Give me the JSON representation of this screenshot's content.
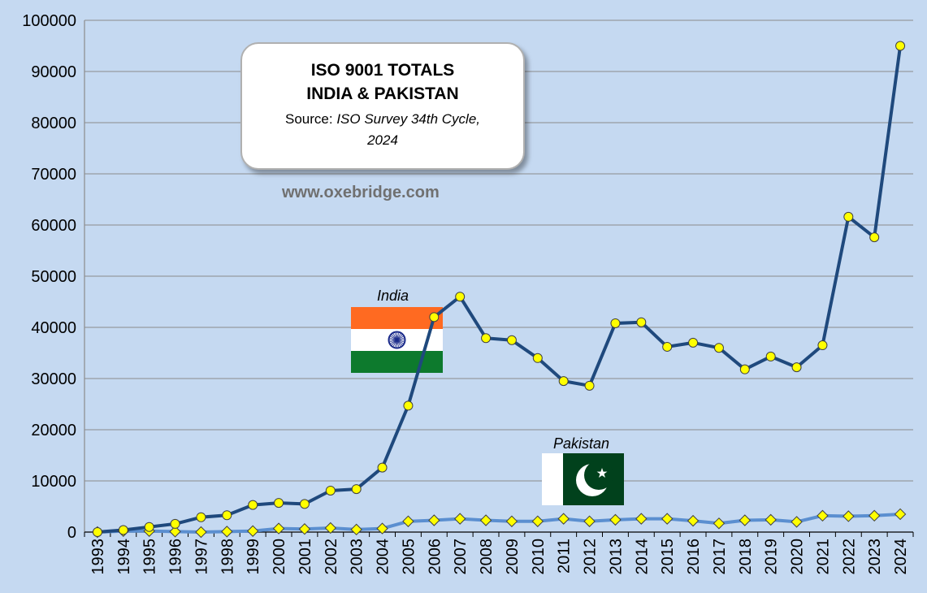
{
  "chart_data": {
    "type": "line",
    "title": "ISO 9001 TOTALS",
    "subtitle": "INDIA & PAKISTAN",
    "source_label": "Source: ",
    "source_text": "ISO Survey 34th Cycle,",
    "source_year": "2024",
    "website": "www.oxebridge.com",
    "ylim": [
      0,
      100000
    ],
    "yticks": [
      0,
      10000,
      20000,
      30000,
      40000,
      50000,
      60000,
      70000,
      80000,
      90000,
      100000
    ],
    "x": [
      "1993",
      "1994",
      "1995",
      "1996",
      "1997",
      "1998",
      "1999",
      "2000",
      "2001",
      "2002",
      "2003",
      "2004",
      "2005",
      "2006",
      "2007",
      "2008",
      "2009",
      "2010",
      "2011",
      "2012",
      "2013",
      "2014",
      "2015",
      "2016",
      "2017",
      "2018",
      "2019",
      "2020",
      "2021",
      "2022",
      "2023",
      "2024"
    ],
    "series": [
      {
        "name": "India",
        "color": "#1f497d",
        "marker": "circle",
        "values": [
          0,
          400,
          1000,
          1600,
          2900,
          3300,
          5300,
          5700,
          5500,
          8100,
          8400,
          12600,
          24700,
          42000,
          46000,
          37900,
          37500,
          34000,
          29500,
          28600,
          40800,
          41000,
          36200,
          37000,
          36000,
          31800,
          34300,
          32200,
          36500,
          61600,
          57600,
          95000
        ]
      },
      {
        "name": "Pakistan",
        "color": "#5b8fd0",
        "marker": "diamond",
        "values": [
          0,
          200,
          200,
          100,
          0,
          100,
          200,
          700,
          600,
          800,
          500,
          700,
          2100,
          2300,
          2600,
          2300,
          2100,
          2100,
          2600,
          2100,
          2400,
          2600,
          2600,
          2200,
          1700,
          2300,
          2400,
          2000,
          3200,
          3100,
          3200,
          3500
        ]
      }
    ],
    "marker_fill": "#ffff00",
    "grid": true,
    "legend": "none"
  }
}
